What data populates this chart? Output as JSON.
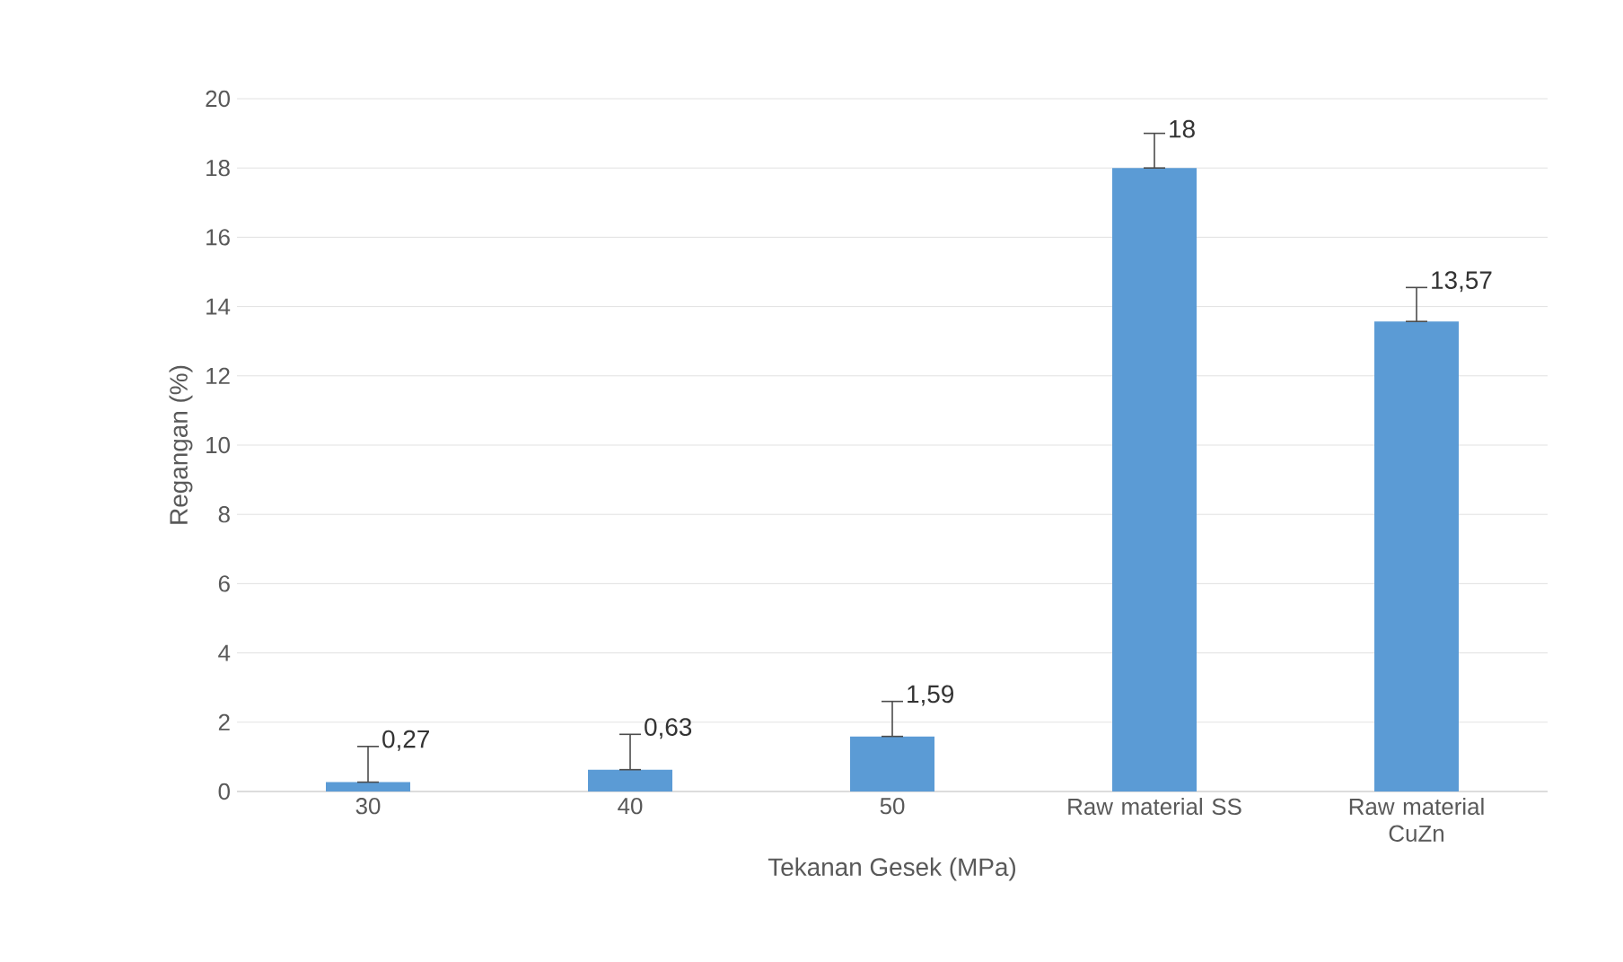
{
  "chart_data": {
    "type": "bar",
    "xlabel": "Tekanan Gesek (MPa)",
    "ylabel": "Regangan (%)",
    "categories": [
      "30",
      "40",
      "50",
      "Raw material SS",
      "Raw material CuZn"
    ],
    "values": [
      0.27,
      0.63,
      1.59,
      18,
      13.57
    ],
    "value_labels": [
      "0,27",
      "0,63",
      "1,59",
      "18",
      "13,57"
    ],
    "errors": [
      [
        0.27,
        1.3
      ],
      [
        0.63,
        1.65
      ],
      [
        1.59,
        2.6
      ],
      [
        18,
        19
      ],
      [
        13.57,
        14.55
      ]
    ],
    "color": "#5b9bd5",
    "ylim": [
      0,
      20
    ],
    "yticks": [
      0,
      2,
      4,
      6,
      8,
      10,
      12,
      14,
      16,
      18,
      20
    ],
    "grid": "y"
  }
}
